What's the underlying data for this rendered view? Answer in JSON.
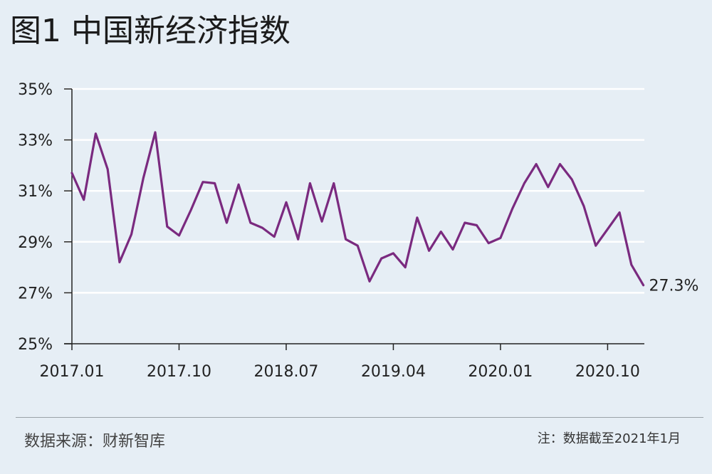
{
  "title": "图1 中国新经济指数",
  "footer": {
    "source": "数据来源：财新智库",
    "note": "注：数据截至2021年1月"
  },
  "colors": {
    "background": "#e6eef5",
    "line": "#7a2a7f",
    "grid": "#ffffff",
    "axis": "#222222"
  },
  "chart_data": {
    "type": "line",
    "title": "",
    "xlabel": "",
    "ylabel": "",
    "ylim": [
      25,
      35
    ],
    "yticks": [
      25,
      27,
      29,
      31,
      33,
      35
    ],
    "ytick_labels": [
      "25%",
      "27%",
      "29%",
      "31%",
      "33%",
      "35%"
    ],
    "xtick_labels": [
      "2017.01",
      "2017.10",
      "2018.07",
      "2019.04",
      "2020.01",
      "2020.10"
    ],
    "xtick_indices": [
      0,
      9,
      18,
      27,
      36,
      45
    ],
    "grid": true,
    "end_label": "27.3%",
    "series": [
      {
        "values": [
          31.7,
          30.65,
          33.25,
          31.85,
          28.2,
          29.3,
          31.5,
          33.3,
          29.6,
          29.25,
          30.25,
          31.35,
          31.3,
          29.75,
          31.25,
          29.75,
          29.55,
          29.2,
          30.55,
          29.1,
          31.3,
          29.8,
          31.3,
          29.1,
          28.85,
          27.45,
          28.35,
          28.55,
          28.0,
          29.95,
          28.65,
          29.4,
          28.7,
          29.75,
          29.65,
          28.95,
          29.15,
          30.3,
          31.3,
          32.05,
          31.15,
          32.05,
          31.45,
          30.4,
          28.85,
          29.5,
          30.15,
          28.1,
          27.3
        ]
      }
    ]
  }
}
